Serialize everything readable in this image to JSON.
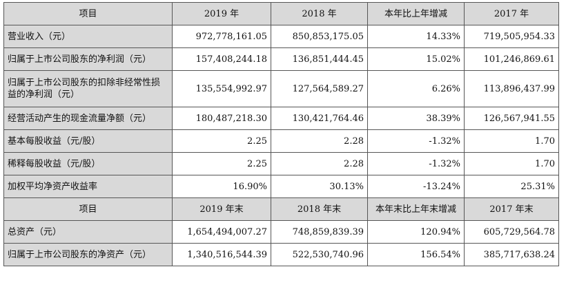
{
  "table": {
    "header1": [
      "项目",
      "2019 年",
      "2018 年",
      "本年比上年增减",
      "2017 年"
    ],
    "rows1": [
      {
        "label": "营业收入（元）",
        "v2019": "972,778,161.05",
        "v2018": "850,853,175.05",
        "change": "14.33%",
        "v2017": "719,505,954.33"
      },
      {
        "label": "归属于上市公司股东的净利润（元）",
        "v2019": "157,408,244.18",
        "v2018": "136,851,444.45",
        "change": "15.02%",
        "v2017": "101,246,869.61"
      },
      {
        "label": "归属于上市公司股东的扣除非经常性损益的净利润（元）",
        "v2019": "135,554,992.97",
        "v2018": "127,564,589.27",
        "change": "6.26%",
        "v2017": "113,896,437.99"
      },
      {
        "label": "经营活动产生的现金流量净额（元）",
        "v2019": "180,487,218.30",
        "v2018": "130,421,764.46",
        "change": "38.39%",
        "v2017": "126,567,941.55"
      },
      {
        "label": "基本每股收益（元/股）",
        "v2019": "2.25",
        "v2018": "2.28",
        "change": "-1.32%",
        "v2017": "1.70"
      },
      {
        "label": "稀释每股收益（元/股）",
        "v2019": "2.25",
        "v2018": "2.28",
        "change": "-1.32%",
        "v2017": "1.70"
      },
      {
        "label": "加权平均净资产收益率",
        "v2019": "16.90%",
        "v2018": "30.13%",
        "change": "-13.24%",
        "v2017": "25.31%"
      }
    ],
    "header2": [
      "项目",
      "2019 年末",
      "2018 年末",
      "本年末比上年末增减",
      "2017 年末"
    ],
    "rows2": [
      {
        "label": "总资产（元）",
        "v2019": "1,654,494,007.27",
        "v2018": "748,859,839.39",
        "change": "120.94%",
        "v2017": "605,729,564.78"
      },
      {
        "label": "归属于上市公司股东的净资产（元）",
        "v2019": "1,340,516,544.39",
        "v2018": "522,530,740.96",
        "change": "156.54%",
        "v2017": "385,717,638.24"
      }
    ]
  }
}
